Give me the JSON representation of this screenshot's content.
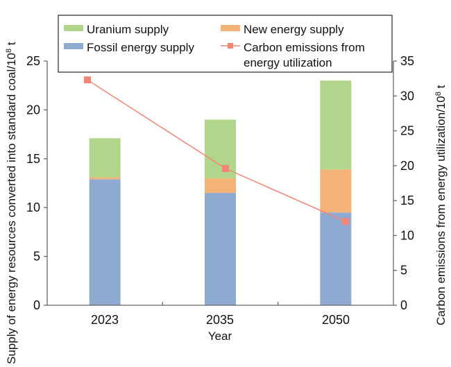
{
  "chart_data": {
    "type": "bar",
    "stacked": true,
    "categories": [
      "2023",
      "2035",
      "2050"
    ],
    "xlabel": "Year",
    "ylabel": "Supply of energy resources converted into standard coal/10⁸ t",
    "y2label": "Carbon emissions from energy utilization/10⁸ t",
    "ylim": [
      0,
      25
    ],
    "y2lim": [
      0,
      35
    ],
    "yticks": [
      "0",
      "5",
      "10",
      "15",
      "20",
      "25"
    ],
    "y2ticks": [
      "0",
      "5",
      "10",
      "15",
      "20",
      "25",
      "30",
      "35"
    ],
    "grid": false,
    "legend_position": "top",
    "series": [
      {
        "name": "Fossil energy supply",
        "type": "bar",
        "axis": "left",
        "color": "#8eaad1",
        "values": [
          12.9,
          11.5,
          9.5
        ]
      },
      {
        "name": "New energy supply",
        "type": "bar",
        "axis": "left",
        "color": "#f3b276",
        "values": [
          0.2,
          1.5,
          4.4
        ]
      },
      {
        "name": "Uranium supply",
        "type": "bar",
        "axis": "left",
        "color": "#b1d68b",
        "values": [
          4.0,
          6.0,
          9.1
        ]
      },
      {
        "name": "Carbon emissions from energy utilization",
        "type": "line",
        "axis": "right",
        "color": "#f28576",
        "values": [
          32.3,
          19.6,
          12.0
        ]
      }
    ],
    "legend": {
      "uranium": "Uranium supply",
      "new_energy": "New energy supply",
      "fossil": "Fossil energy supply",
      "carbon_line1": "Carbon emissions from",
      "carbon_line2": "energy utilization"
    },
    "ylabel_text": "Supply of energy resources converted into standard coal/10",
    "y2label_text": "Carbon emissions from energy utilization/10",
    "unit_sup": "8",
    "unit_t": " t"
  }
}
